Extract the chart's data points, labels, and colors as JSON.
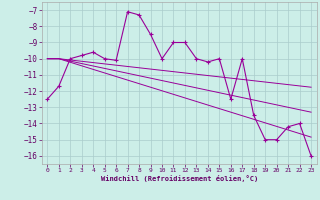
{
  "xlabel": "Windchill (Refroidissement éolien,°C)",
  "bg_color": "#cceee8",
  "line_color": "#990099",
  "grid_color": "#aacccc",
  "x_data": [
    0,
    1,
    2,
    3,
    4,
    5,
    6,
    7,
    8,
    9,
    10,
    11,
    12,
    13,
    14,
    15,
    16,
    17,
    18,
    19,
    20,
    21,
    22,
    23
  ],
  "y_main": [
    -12.5,
    -11.7,
    -10.0,
    -9.8,
    -9.6,
    -10.0,
    -10.1,
    -7.1,
    -7.3,
    -8.5,
    -10.0,
    -9.0,
    -9.0,
    -10.0,
    -10.2,
    -10.0,
    -12.5,
    -10.0,
    -13.5,
    -15.0,
    -15.0,
    -14.2,
    -14.0,
    -16.0
  ],
  "y_trend1": [
    -10.0,
    -10.0,
    -10.08,
    -10.16,
    -10.24,
    -10.32,
    -10.4,
    -10.48,
    -10.56,
    -10.64,
    -10.72,
    -10.8,
    -10.88,
    -10.96,
    -11.04,
    -11.12,
    -11.2,
    -11.28,
    -11.36,
    -11.44,
    -11.52,
    -11.6,
    -11.68,
    -11.76
  ],
  "y_trend2": [
    -10.0,
    -10.0,
    -10.15,
    -10.3,
    -10.45,
    -10.6,
    -10.75,
    -10.9,
    -11.05,
    -11.2,
    -11.35,
    -11.5,
    -11.65,
    -11.8,
    -11.95,
    -12.1,
    -12.25,
    -12.4,
    -12.55,
    -12.7,
    -12.85,
    -13.0,
    -13.15,
    -13.3
  ],
  "y_trend3": [
    -10.0,
    -10.0,
    -10.22,
    -10.44,
    -10.66,
    -10.88,
    -11.1,
    -11.32,
    -11.54,
    -11.76,
    -11.98,
    -12.2,
    -12.42,
    -12.64,
    -12.86,
    -13.08,
    -13.3,
    -13.52,
    -13.74,
    -13.96,
    -14.18,
    -14.4,
    -14.62,
    -14.84
  ],
  "ylim": [
    -16.5,
    -6.5
  ],
  "xlim": [
    -0.5,
    23.5
  ],
  "yticks": [
    -7,
    -8,
    -9,
    -10,
    -11,
    -12,
    -13,
    -14,
    -15,
    -16
  ],
  "xticks": [
    0,
    1,
    2,
    3,
    4,
    5,
    6,
    7,
    8,
    9,
    10,
    11,
    12,
    13,
    14,
    15,
    16,
    17,
    18,
    19,
    20,
    21,
    22,
    23
  ]
}
